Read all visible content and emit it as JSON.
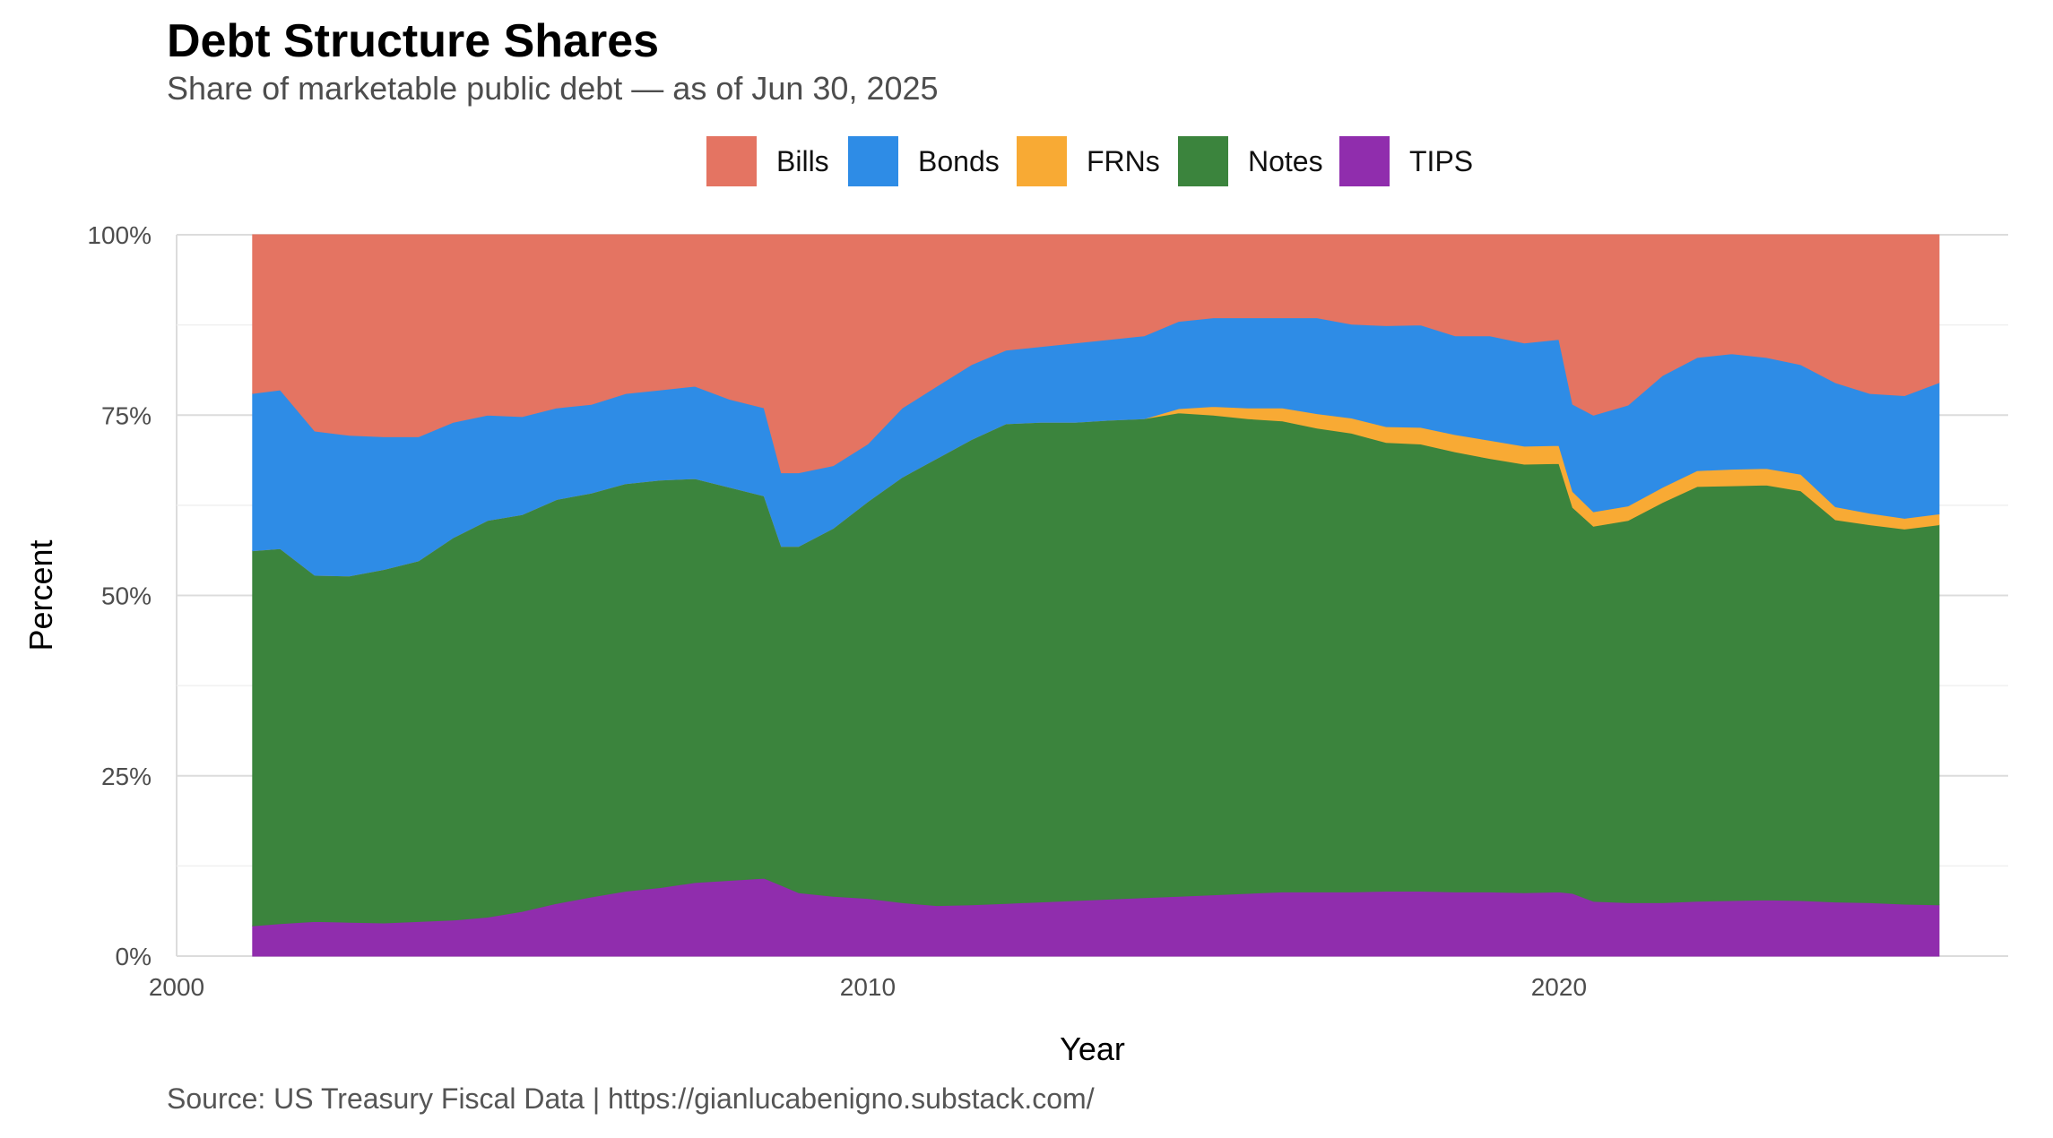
{
  "chart_data": {
    "type": "area",
    "stacked": true,
    "normalized": true,
    "title": "Debt Structure Shares",
    "subtitle": "Share of marketable public debt — as of Jun 30, 2025",
    "caption": "Source: US Treasury Fiscal Data | https://gianlucabenigno.substack.com/",
    "xlabel": "Year",
    "ylabel": "Percent",
    "xlim": [
      2000,
      2026.5
    ],
    "ylim": [
      0,
      100
    ],
    "x_ticks": [
      2000,
      2010,
      2020
    ],
    "y_ticks": [
      0,
      25,
      50,
      75,
      100
    ],
    "y_tick_labels": [
      "0%",
      "25%",
      "50%",
      "75%",
      "100%"
    ],
    "grid": true,
    "legend_position": "top",
    "stack_order": [
      "TIPS",
      "Notes",
      "FRNs",
      "Bonds",
      "Bills"
    ],
    "series_legend": [
      {
        "name": "Bills",
        "color": "#E47462"
      },
      {
        "name": "Bonds",
        "color": "#2E8CE6"
      },
      {
        "name": "FRNs",
        "color": "#F8AA34"
      },
      {
        "name": "Notes",
        "color": "#3B843D"
      },
      {
        "name": "TIPS",
        "color": "#902DAD"
      }
    ],
    "x": [
      2001.1,
      2001.5,
      2002.0,
      2002.5,
      2003.0,
      2003.5,
      2004.0,
      2004.5,
      2005.0,
      2005.5,
      2006.0,
      2006.5,
      2007.0,
      2007.5,
      2008.0,
      2008.5,
      2008.75,
      2009.0,
      2009.5,
      2010.0,
      2010.5,
      2011.0,
      2011.5,
      2012.0,
      2012.5,
      2013.0,
      2013.5,
      2014.0,
      2014.5,
      2015.0,
      2015.5,
      2016.0,
      2016.5,
      2017.0,
      2017.5,
      2018.0,
      2018.5,
      2019.0,
      2019.5,
      2020.0,
      2020.2,
      2020.5,
      2021.0,
      2021.5,
      2022.0,
      2022.5,
      2023.0,
      2023.5,
      2024.0,
      2024.5,
      2025.0,
      2025.5
    ],
    "series": [
      {
        "name": "TIPS",
        "values": [
          4.2,
          4.5,
          4.8,
          4.7,
          4.6,
          4.8,
          5.0,
          5.4,
          6.2,
          7.3,
          8.2,
          9.0,
          9.5,
          10.2,
          10.5,
          10.8,
          9.8,
          8.8,
          8.3,
          8.0,
          7.4,
          7.0,
          7.1,
          7.3,
          7.5,
          7.7,
          7.9,
          8.1,
          8.3,
          8.5,
          8.7,
          8.9,
          8.9,
          8.9,
          9.0,
          9.0,
          8.9,
          8.9,
          8.8,
          8.9,
          8.7,
          7.6,
          7.4,
          7.4,
          7.6,
          7.7,
          7.8,
          7.7,
          7.5,
          7.4,
          7.2,
          7.1
        ]
      },
      {
        "name": "Notes",
        "values": [
          52.0,
          52.0,
          48.0,
          48.0,
          49.0,
          50.0,
          53.0,
          55.0,
          55.0,
          56.0,
          56.0,
          56.5,
          56.5,
          56.0,
          54.5,
          53.0,
          47.0,
          48.0,
          51.0,
          55.0,
          59.0,
          62.0,
          64.5,
          66.5,
          66.5,
          66.3,
          66.4,
          66.4,
          67.0,
          66.5,
          65.8,
          65.3,
          64.3,
          63.6,
          62.2,
          62.0,
          61.0,
          60.1,
          59.4,
          59.4,
          53.5,
          52.0,
          53.0,
          55.5,
          57.5,
          57.5,
          57.5,
          56.8,
          53.0,
          52.4,
          52.0,
          52.7
        ]
      },
      {
        "name": "FRNs",
        "values": [
          0,
          0,
          0,
          0,
          0,
          0,
          0,
          0,
          0,
          0,
          0,
          0,
          0,
          0,
          0,
          0,
          0,
          0,
          0,
          0,
          0,
          0,
          0,
          0,
          0,
          0,
          0,
          0,
          0.6,
          1.2,
          1.5,
          1.8,
          2.0,
          2.1,
          2.2,
          2.3,
          2.4,
          2.5,
          2.5,
          2.5,
          2.2,
          2.0,
          2.0,
          2.1,
          2.2,
          2.3,
          2.3,
          2.3,
          1.8,
          1.6,
          1.5,
          1.5
        ]
      },
      {
        "name": "Bonds",
        "values": [
          21.8,
          22.0,
          20.0,
          19.5,
          18.4,
          17.2,
          16.0,
          14.6,
          13.6,
          12.7,
          12.3,
          12.5,
          12.5,
          12.8,
          12.2,
          12.2,
          10.2,
          10.2,
          8.7,
          8.0,
          9.6,
          10.0,
          10.4,
          10.2,
          10.5,
          11.0,
          11.2,
          11.5,
          12.1,
          12.3,
          12.5,
          12.5,
          13.3,
          13.0,
          14.0,
          14.2,
          13.7,
          14.5,
          14.3,
          14.7,
          12.1,
          13.4,
          14.0,
          15.5,
          15.7,
          16.0,
          15.4,
          15.2,
          17.2,
          16.6,
          17.0,
          18.2
        ]
      },
      {
        "name": "Bills",
        "values": [
          22.0,
          21.5,
          27.2,
          27.8,
          28.0,
          28.0,
          26.0,
          25.0,
          25.2,
          24.0,
          23.5,
          22.0,
          21.5,
          21.0,
          22.8,
          24.0,
          33.0,
          33.0,
          32.0,
          29.0,
          24.0,
          21.0,
          18.0,
          16.0,
          15.5,
          15.0,
          14.5,
          14.0,
          12.0,
          11.5,
          11.5,
          11.5,
          11.5,
          12.4,
          12.6,
          12.5,
          14.0,
          14.0,
          15.0,
          14.5,
          23.5,
          25.0,
          23.6,
          19.5,
          17.0,
          16.5,
          17.0,
          18.0,
          20.5,
          22.0,
          22.3,
          20.5
        ]
      }
    ]
  }
}
